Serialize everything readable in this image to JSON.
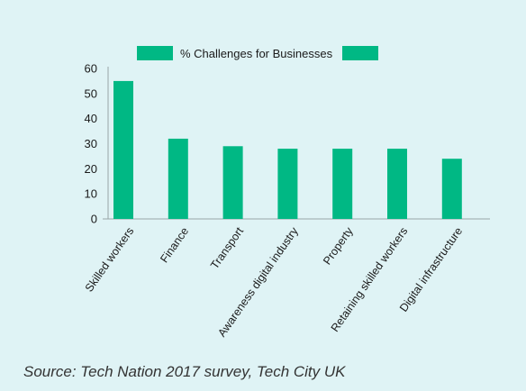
{
  "chart_data": {
    "type": "bar",
    "title": "",
    "xlabel": "",
    "ylabel": "",
    "categories": [
      "Skilled workers",
      "Finance",
      "Transport",
      "Awareness digital industry",
      "Property",
      "Retaining skilled workers",
      "Digital infrastructure"
    ],
    "series": [
      {
        "name": "% Challenges for Businesses",
        "values": [
          55,
          32,
          29,
          28,
          28,
          28,
          24
        ]
      }
    ],
    "ylim": [
      0,
      60
    ],
    "yticks": [
      0,
      10,
      20,
      30,
      40,
      50,
      60
    ],
    "legend_position": "top",
    "grid": false
  },
  "colors": {
    "bar": "#00b884",
    "background": "#dff3f5",
    "axis": "#9aa6a8"
  },
  "source": "Source: Tech Nation 2017 survey, Tech City UK"
}
